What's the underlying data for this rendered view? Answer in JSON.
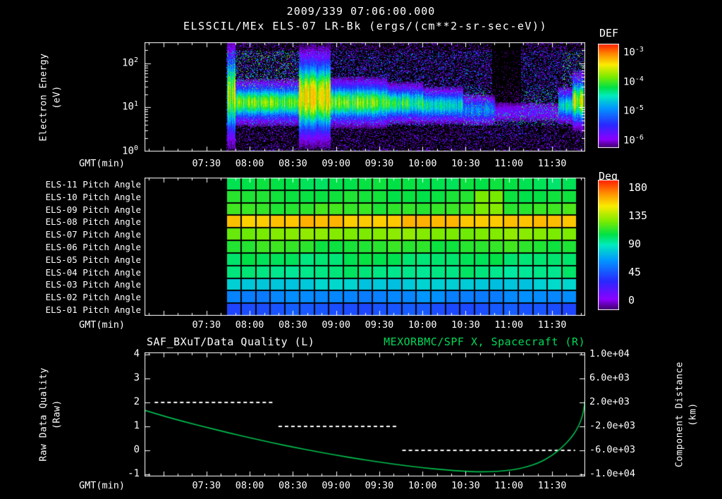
{
  "title": "2009/339 07:06:00.000",
  "subtitle": "ELSSCIL/MEx ELS-07 LR-Bk  (ergs/(cm**2-sr-sec-eV))",
  "colors": {
    "background": "#000000",
    "text": "#ffffff",
    "accent_green": "#00d857",
    "series_green": "#00c04e",
    "quality_white": "#ffffff"
  },
  "time_axis": {
    "label": "GMT(min)",
    "start_min": 407,
    "end_min": 713,
    "ticks": [
      {
        "label": "07:30",
        "min": 450
      },
      {
        "label": "08:00",
        "min": 480
      },
      {
        "label": "08:30",
        "min": 510
      },
      {
        "label": "09:00",
        "min": 540
      },
      {
        "label": "09:30",
        "min": 570
      },
      {
        "label": "10:00",
        "min": 600
      },
      {
        "label": "10:30",
        "min": 630
      },
      {
        "label": "11:00",
        "min": 660
      },
      {
        "label": "11:30",
        "min": 690
      }
    ]
  },
  "chart_data": [
    {
      "type": "heatmap",
      "name": "electron-energy-spectrogram",
      "instrument": "ELSSCIL/MEx ELS-07 LR-Bk",
      "units": "ergs/(cm**2-sr-sec-eV)",
      "ylabel_lines": [
        "Electron Energy",
        "(eV)"
      ],
      "y_scale": "log",
      "y_range_ev": [
        1,
        300
      ],
      "y_ticks": [
        {
          "base": "10",
          "exp": "2",
          "energy_ev": 100
        },
        {
          "base": "10",
          "exp": "1",
          "energy_ev": 10
        },
        {
          "base": "10",
          "exp": "0",
          "energy_ev": 1
        }
      ],
      "colorbar": {
        "title": "DEF",
        "scale": "log",
        "ticks": [
          {
            "base": "10",
            "exp": "-3",
            "value": 0.001
          },
          {
            "base": "10",
            "exp": "-4",
            "value": 0.0001
          },
          {
            "base": "10",
            "exp": "-5",
            "value": 1e-05
          },
          {
            "base": "10",
            "exp": "-6",
            "value": 1e-06
          }
        ]
      },
      "data_start_min": 464,
      "data_end_min": 712,
      "band_segments": [
        {
          "start_min": 464,
          "end_min": 470,
          "center_log10_ev": 1.3,
          "width_log10": 0.55,
          "amplitude": 0.7
        },
        {
          "start_min": 470,
          "end_min": 514,
          "center_log10_ev": 1.12,
          "width_log10": 0.24,
          "amplitude": 0.65
        },
        {
          "start_min": 514,
          "end_min": 536,
          "center_log10_ev": 1.25,
          "width_log10": 0.5,
          "amplitude": 0.85
        },
        {
          "start_min": 536,
          "end_min": 575,
          "center_log10_ev": 1.12,
          "width_log10": 0.26,
          "amplitude": 0.65
        },
        {
          "start_min": 575,
          "end_min": 600,
          "center_log10_ev": 1.1,
          "width_log10": 0.22,
          "amplitude": 0.58
        },
        {
          "start_min": 600,
          "end_min": 628,
          "center_log10_ev": 1.05,
          "width_log10": 0.2,
          "amplitude": 0.5
        },
        {
          "start_min": 628,
          "end_min": 650,
          "center_log10_ev": 0.95,
          "width_log10": 0.18,
          "amplitude": 0.35
        },
        {
          "start_min": 650,
          "end_min": 694,
          "center_log10_ev": 0.9,
          "width_log10": 0.15,
          "amplitude": 0.15
        },
        {
          "start_min": 694,
          "end_min": 704,
          "center_log10_ev": 1.05,
          "width_log10": 0.2,
          "amplitude": 0.5
        },
        {
          "start_min": 704,
          "end_min": 713,
          "center_log10_ev": 1.15,
          "width_log10": 0.3,
          "amplitude": 0.72
        }
      ]
    },
    {
      "type": "heatmap",
      "name": "pitch-angle-panels",
      "colorbar": {
        "title": "Deg",
        "ticks": [
          {
            "label": "180",
            "value": 180
          },
          {
            "label": "135",
            "value": 135
          },
          {
            "label": "90",
            "value": 90
          },
          {
            "label": "45",
            "value": 45
          },
          {
            "label": "0",
            "value": 0
          }
        ]
      },
      "data_start_min": 464,
      "data_end_min": 707,
      "columns": 24,
      "rows": [
        {
          "label": "ELS-11 Pitch Angle",
          "mean_deg": 104
        },
        {
          "label": "ELS-10 Pitch Angle",
          "mean_deg": 107
        },
        {
          "label": "ELS-09 Pitch Angle",
          "mean_deg": 112
        },
        {
          "label": "ELS-08 Pitch Angle",
          "mean_deg": 152
        },
        {
          "label": "ELS-07 Pitch Angle",
          "mean_deg": 124
        },
        {
          "label": "ELS-06 Pitch Angle",
          "mean_deg": 110
        },
        {
          "label": "ELS-05 Pitch Angle",
          "mean_deg": 101
        },
        {
          "label": "ELS-04 Pitch Angle",
          "mean_deg": 97
        },
        {
          "label": "ELS-03 Pitch Angle",
          "mean_deg": 82
        },
        {
          "label": "ELS-02 Pitch Angle",
          "mean_deg": 64
        },
        {
          "label": "ELS-01 Pitch Angle",
          "mean_deg": 50
        }
      ]
    },
    {
      "type": "line",
      "name": "quality-and-spacecraft-x",
      "title_left": "SAF_BXuT/Data Quality (L)",
      "title_right": "MEXORBMC/SPF X, Spacecraft (R)",
      "left_axis": {
        "label_lines": [
          "Raw Data Quality",
          "(Raw)"
        ],
        "range": [
          -1,
          4
        ],
        "ticks": [
          {
            "label": "4",
            "value": 4
          },
          {
            "label": "3",
            "value": 3
          },
          {
            "label": "2",
            "value": 2
          },
          {
            "label": "1",
            "value": 1
          },
          {
            "label": "0",
            "value": 0
          },
          {
            "label": "-1",
            "value": -1
          }
        ]
      },
      "right_axis": {
        "label_lines": [
          "Component Distance",
          "(km)"
        ],
        "range": [
          -10000,
          10000
        ],
        "ticks": [
          {
            "label": "1.0e+04",
            "value": 10000
          },
          {
            "label": "6.0e+03",
            "value": 6000
          },
          {
            "label": "2.0e+03",
            "value": 2000
          },
          {
            "label": "-2.0e+03",
            "value": -2000
          },
          {
            "label": "-6.0e+03",
            "value": -6000
          },
          {
            "label": "-1.0e+04",
            "value": -10000
          }
        ]
      },
      "series": [
        {
          "name": "SAF_BXuT/Data Quality",
          "axis": "left",
          "style": "dashed",
          "color": "#ffffff",
          "segments": [
            {
              "value": 2,
              "start_min": 414,
              "end_min": 497,
              "start_gmt": "06:54",
              "end_gmt": "08:17"
            },
            {
              "value": 1,
              "start_min": 500,
              "end_min": 583,
              "start_gmt": "08:20",
              "end_gmt": "09:43"
            },
            {
              "value": 0,
              "start_min": 586,
              "end_min": 706,
              "start_gmt": "09:46",
              "end_gmt": "11:46"
            }
          ]
        },
        {
          "name": "MEXORBMC/SPF X Spacecraft",
          "axis": "right",
          "style": "solid",
          "color": "#00c04e",
          "points_min_km": [
            [
              407,
              700
            ],
            [
              420,
              -250
            ],
            [
              435,
              -1250
            ],
            [
              450,
              -2150
            ],
            [
              465,
              -3050
            ],
            [
              480,
              -3900
            ],
            [
              495,
              -4700
            ],
            [
              510,
              -5450
            ],
            [
              525,
              -6150
            ],
            [
              540,
              -6800
            ],
            [
              555,
              -7400
            ],
            [
              570,
              -7950
            ],
            [
              585,
              -8450
            ],
            [
              600,
              -8900
            ],
            [
              615,
              -9250
            ],
            [
              628,
              -9480
            ],
            [
              640,
              -9600
            ],
            [
              652,
              -9520
            ],
            [
              663,
              -9250
            ],
            [
              672,
              -8800
            ],
            [
              680,
              -8150
            ],
            [
              687,
              -7300
            ],
            [
              693,
              -6300
            ],
            [
              698,
              -5250
            ],
            [
              703,
              -4000
            ],
            [
              707,
              -2600
            ],
            [
              710,
              -1100
            ],
            [
              712,
              600
            ],
            [
              713,
              2700
            ]
          ]
        }
      ]
    }
  ]
}
